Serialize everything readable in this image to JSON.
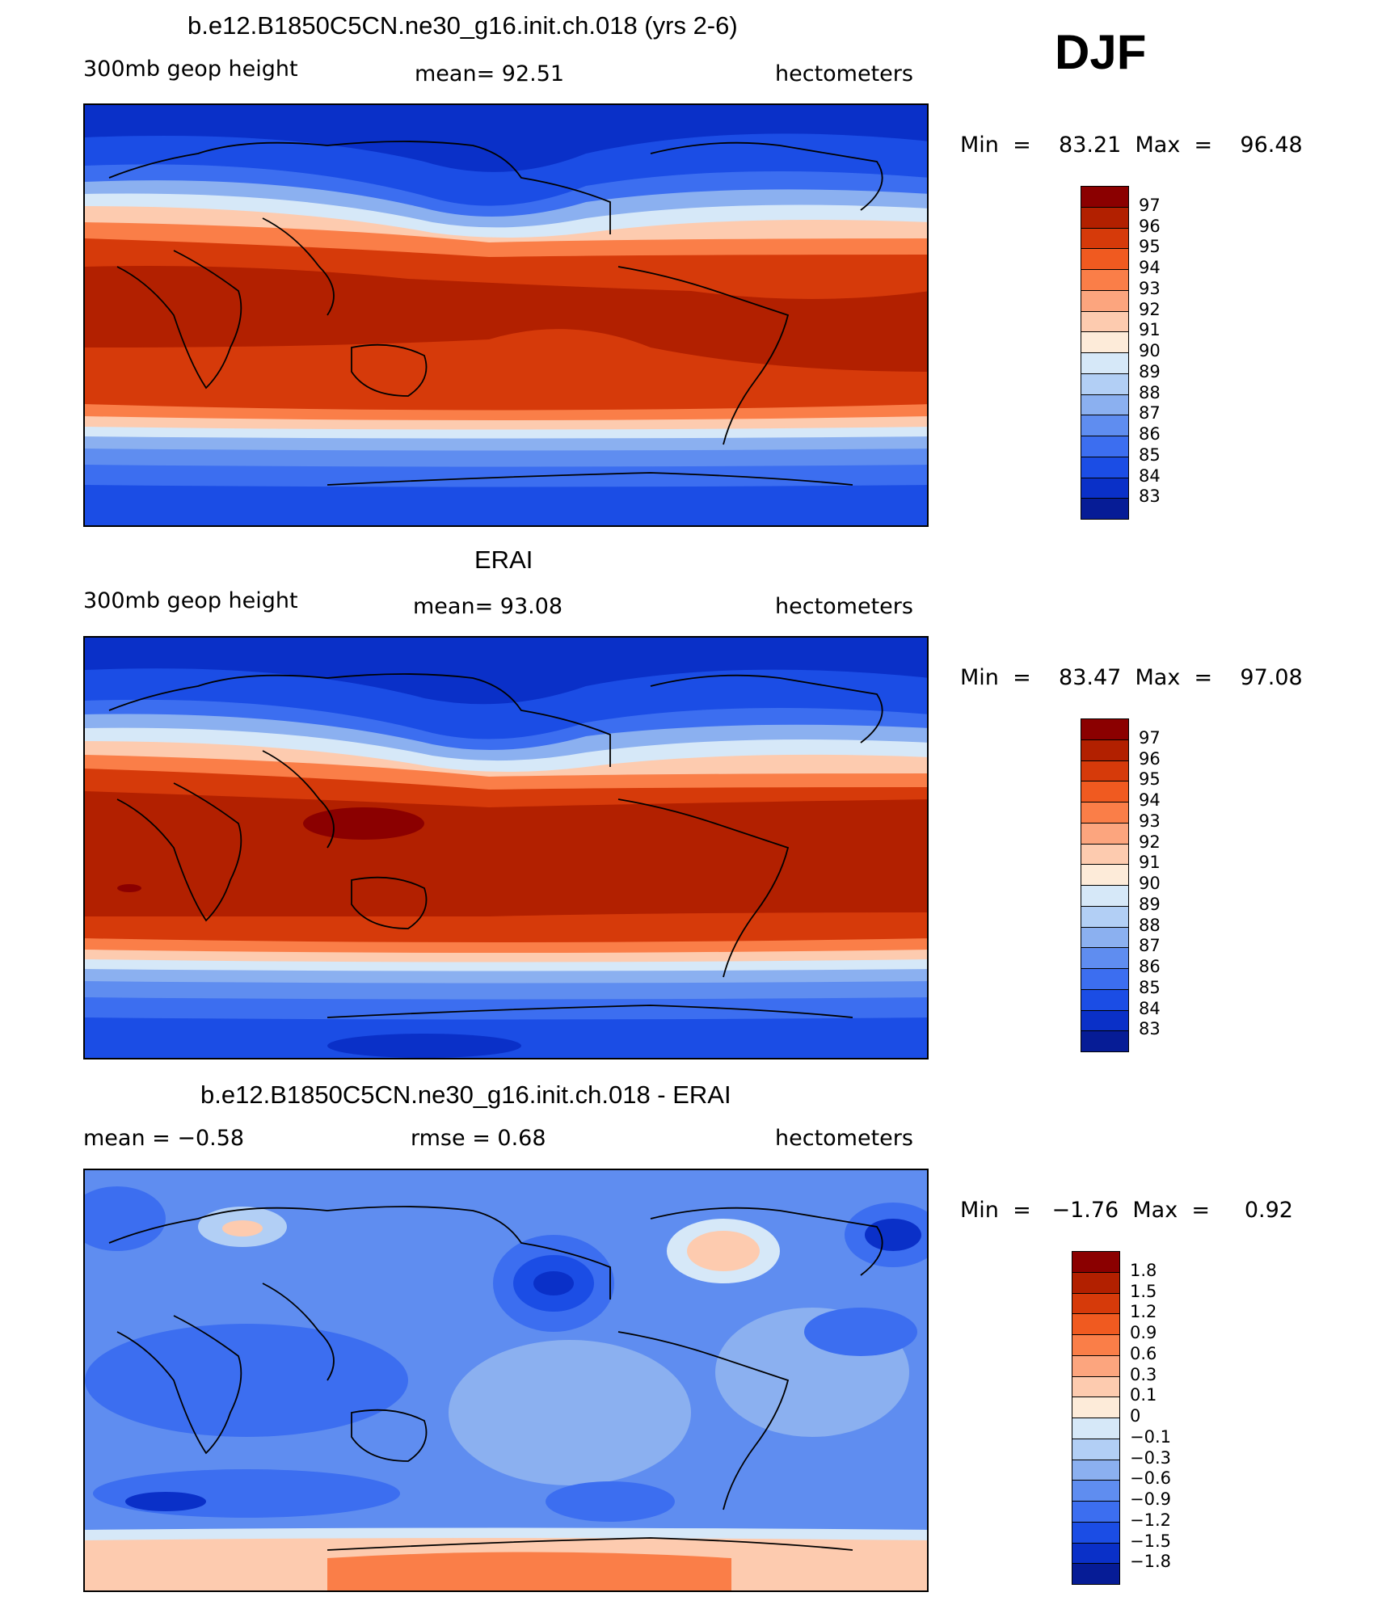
{
  "season": "DJF",
  "panels": [
    {
      "title": "b.e12.B1850C5CN.ne30_g16.init.ch.018 (yrs 2-6)",
      "left_label": "300mb  geop  height",
      "center_label": "mean=   92.51",
      "right_label": "hectometers",
      "min_max": "Min  =    83.21  Max  =    96.48",
      "colorbar": {
        "levels": [
          "97",
          "96",
          "95",
          "94",
          "93",
          "92",
          "91",
          "90",
          "89",
          "88",
          "87",
          "86",
          "85",
          "84",
          "83"
        ],
        "colors": [
          "#8b0000",
          "#b22000",
          "#d63a0a",
          "#f05a20",
          "#fa7e48",
          "#fca57e",
          "#fdcbaf",
          "#fdebd9",
          "#d6e8f8",
          "#b2cff5",
          "#8bb0f0",
          "#5f8df0",
          "#3c6ef0",
          "#1b4de5",
          "#0a30c8",
          "#061c96"
        ]
      }
    },
    {
      "title": "ERAI",
      "left_label": "300mb  geop  height",
      "center_label": "mean=   93.08",
      "right_label": "hectometers",
      "min_max": "Min  =    83.47  Max  =    97.08",
      "colorbar": {
        "levels": [
          "97",
          "96",
          "95",
          "94",
          "93",
          "92",
          "91",
          "90",
          "89",
          "88",
          "87",
          "86",
          "85",
          "84",
          "83"
        ],
        "colors": [
          "#8b0000",
          "#b22000",
          "#d63a0a",
          "#f05a20",
          "#fa7e48",
          "#fca57e",
          "#fdcbaf",
          "#fdebd9",
          "#d6e8f8",
          "#b2cff5",
          "#8bb0f0",
          "#5f8df0",
          "#3c6ef0",
          "#1b4de5",
          "#0a30c8",
          "#061c96"
        ]
      }
    },
    {
      "title": "b.e12.B1850C5CN.ne30_g16.init.ch.018 - ERAI",
      "left_label": "mean  =    −0.58",
      "center_label": "rmse  =     0.68",
      "right_label": "hectometers",
      "min_max": "Min  =   −1.76  Max  =     0.92",
      "colorbar": {
        "levels": [
          "1.8",
          "1.5",
          "1.2",
          "0.9",
          "0.6",
          "0.3",
          "0.1",
          "0",
          "−0.1",
          "−0.3",
          "−0.6",
          "−0.9",
          "−1.2",
          "−1.5",
          "−1.8"
        ],
        "colors": [
          "#8b0000",
          "#b22000",
          "#d63a0a",
          "#f05a20",
          "#fa7e48",
          "#fca57e",
          "#fdcbaf",
          "#fdebd9",
          "#d6e8f8",
          "#b2cff5",
          "#8bb0f0",
          "#5f8df0",
          "#3c6ef0",
          "#1b4de5",
          "#0a30c8",
          "#061c96"
        ]
      }
    }
  ]
}
